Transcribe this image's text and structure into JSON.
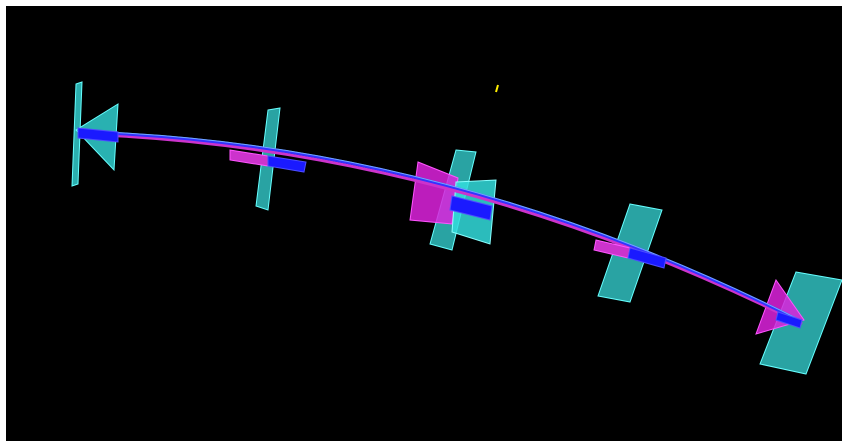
{
  "scene": {
    "background_color": "#000000",
    "frame_color": "#ffffff",
    "colors": {
      "detector_plane": "#33cccc",
      "detector_plane_edge": "#66ffff",
      "trajectory_blue": "#1a1aff",
      "trajectory_magenta": "#cc33cc",
      "cone_magenta": "#dd22dd",
      "cone_cyan": "#33dddd",
      "marker_yellow": "#ffee00"
    },
    "objects": [
      {
        "kind": "detector-plane",
        "count": 5
      },
      {
        "kind": "track-segment",
        "count": 1
      },
      {
        "kind": "cone",
        "count": 4
      },
      {
        "kind": "marker",
        "count": 1
      }
    ]
  }
}
